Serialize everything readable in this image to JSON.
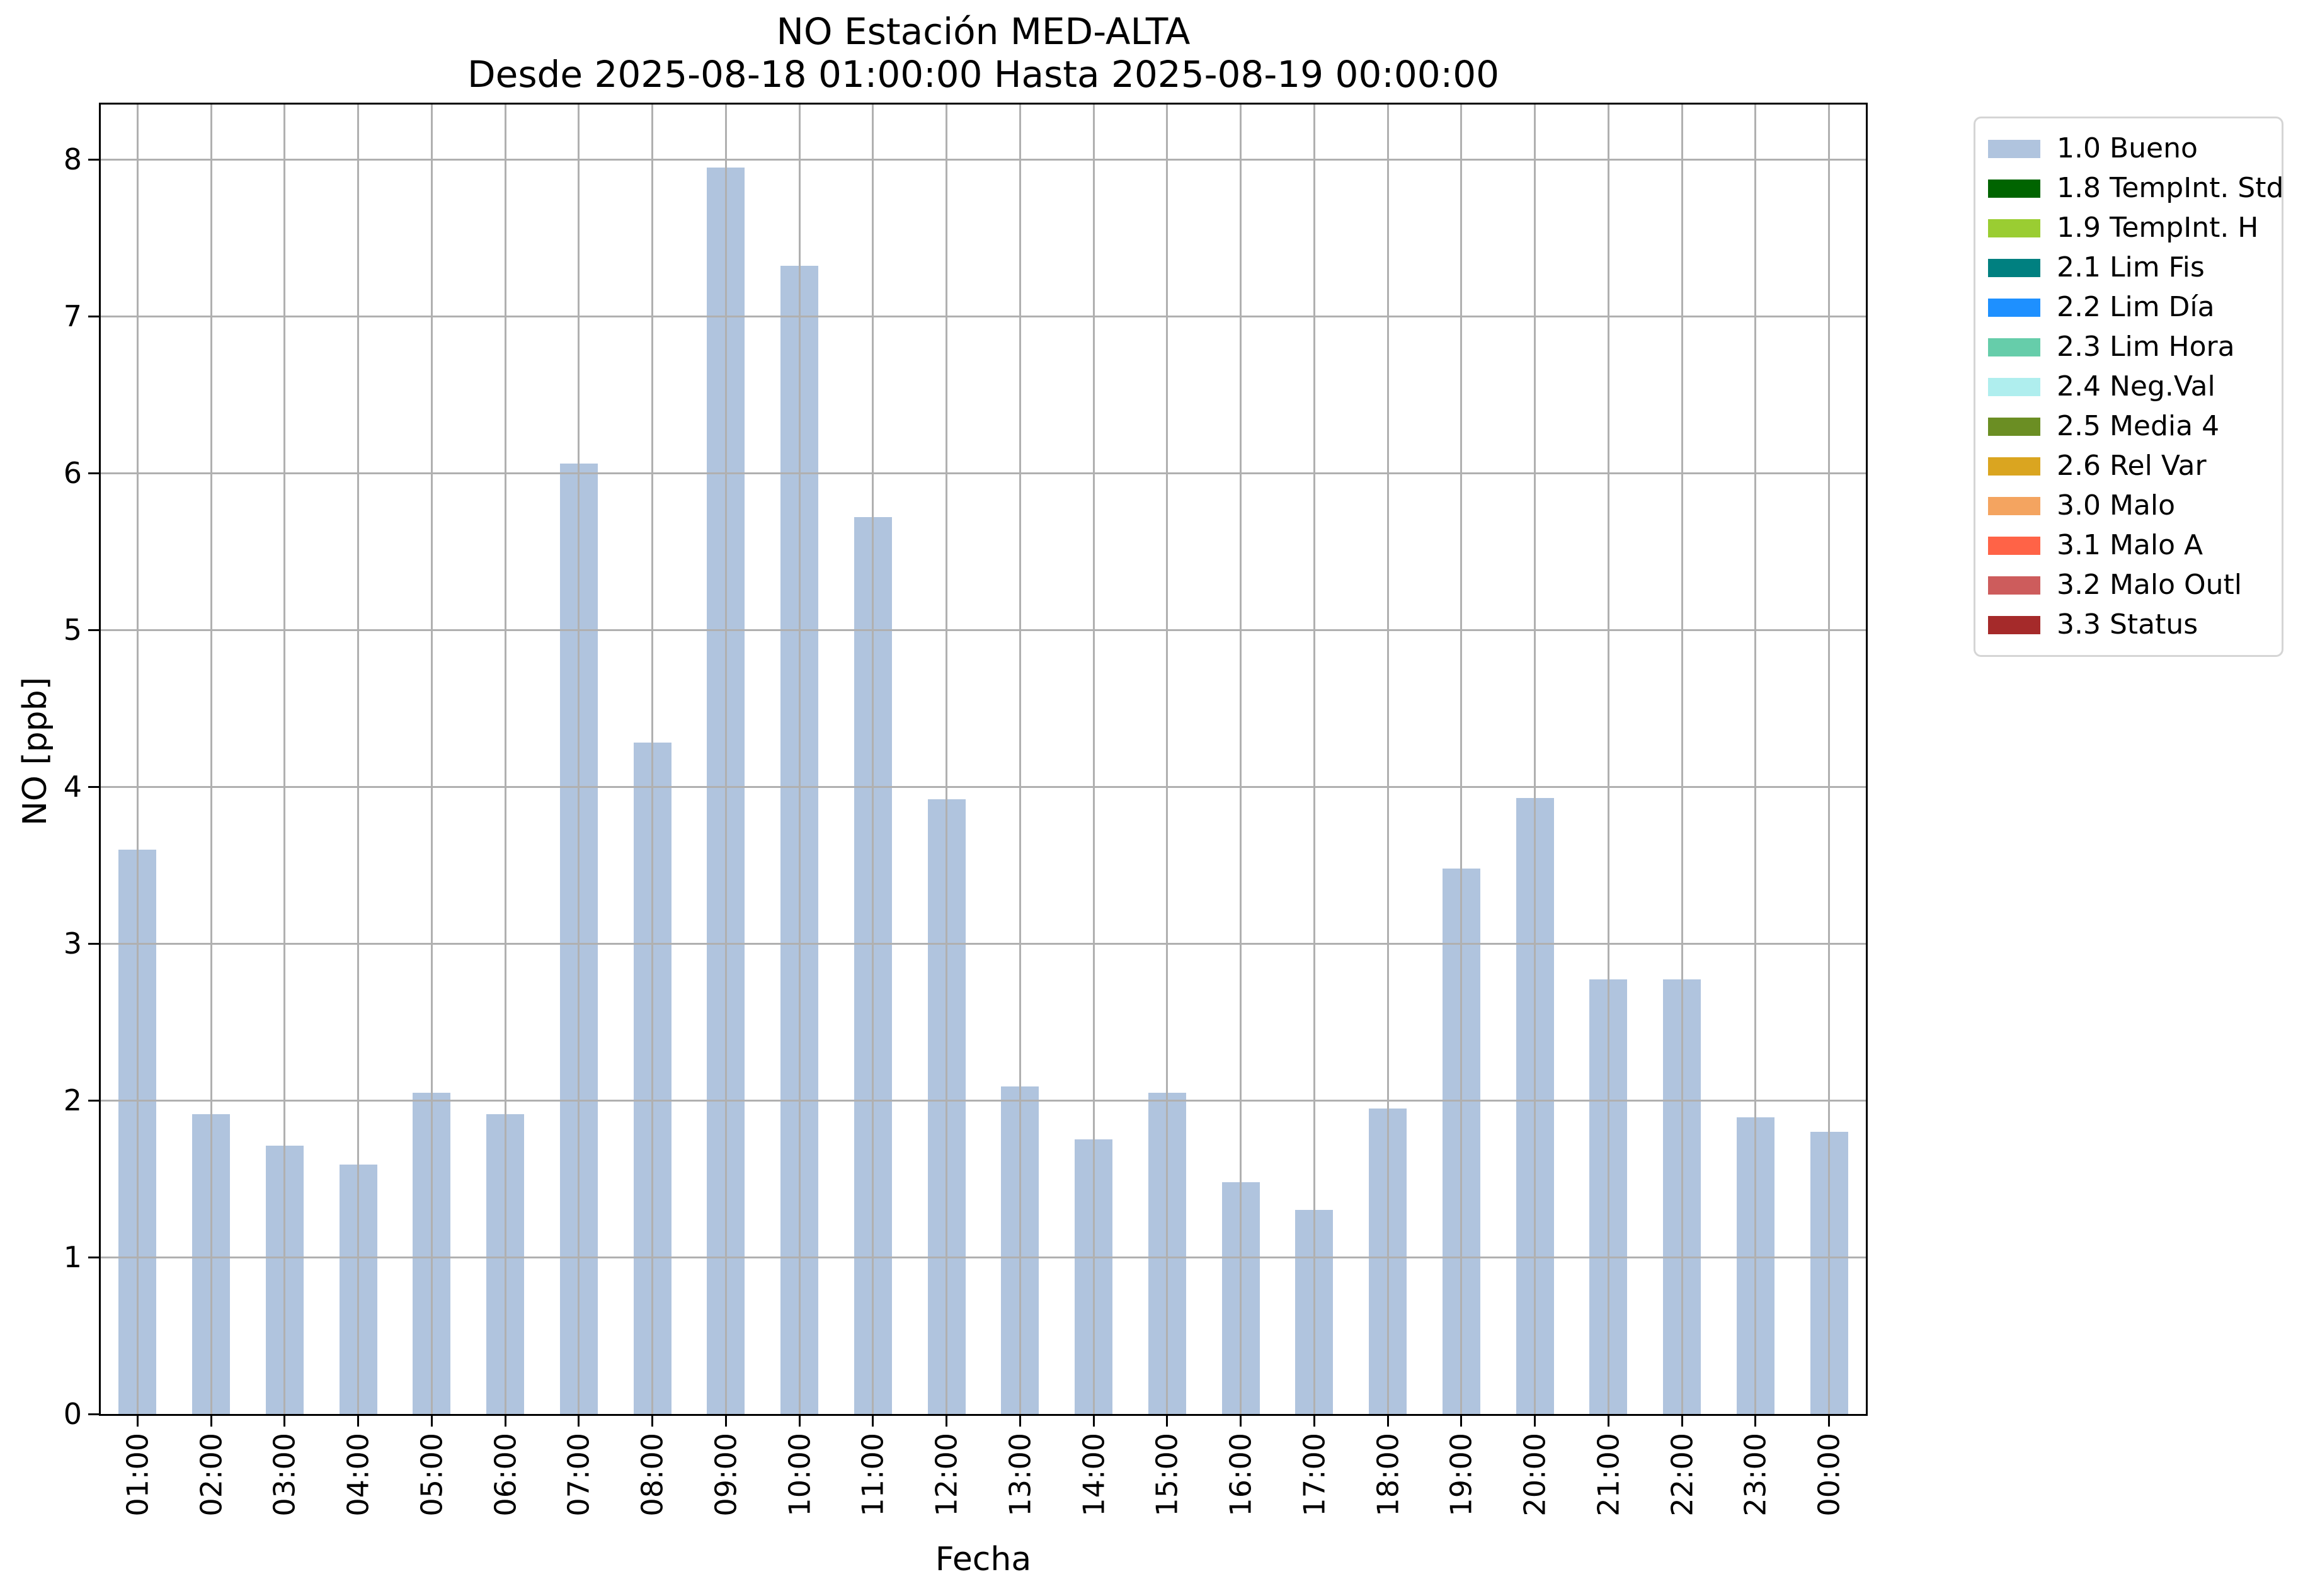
{
  "title": {
    "line1": "NO Estación MED-ALTA",
    "line2": "Desde 2025-08-18 01:00:00 Hasta 2025-08-19 00:00:00"
  },
  "chart_data": {
    "type": "bar",
    "title": "NO Estación MED-ALTA\nDesde 2025-08-18 01:00:00 Hasta 2025-08-19 00:00:00",
    "xlabel": "Fecha",
    "ylabel": "NO [ppb]",
    "categories": [
      "01:00",
      "02:00",
      "03:00",
      "04:00",
      "05:00",
      "06:00",
      "07:00",
      "08:00",
      "09:00",
      "10:00",
      "11:00",
      "12:00",
      "13:00",
      "14:00",
      "15:00",
      "16:00",
      "17:00",
      "18:00",
      "19:00",
      "20:00",
      "21:00",
      "22:00",
      "23:00",
      "00:00"
    ],
    "values": [
      3.6,
      1.91,
      1.71,
      1.59,
      2.05,
      1.91,
      6.06,
      4.28,
      7.95,
      7.32,
      5.72,
      3.92,
      2.09,
      1.75,
      2.05,
      1.48,
      1.3,
      1.95,
      3.48,
      3.93,
      2.77,
      2.77,
      1.89,
      1.8
    ],
    "series_label": "1.0 Bueno",
    "ylim": [
      0,
      8.35
    ],
    "yticks": [
      0,
      1,
      2,
      3,
      4,
      5,
      6,
      7,
      8
    ],
    "grid": true,
    "grid_on_top_of_bars": true,
    "legend_position": "outside upper right"
  },
  "colors": {
    "bar": "#b0c4de",
    "grid": "#b0b0b0",
    "axis": "#000000",
    "legend_border": "#d5d5d5",
    "background": "#ffffff"
  },
  "legend": {
    "items": [
      {
        "label": "1.0 Bueno",
        "color": "#b0c4de"
      },
      {
        "label": "1.8 TempInt. Std",
        "color": "#006400"
      },
      {
        "label": "1.9 TempInt. H",
        "color": "#9acd32"
      },
      {
        "label": "2.1 Lim Fis",
        "color": "#008080"
      },
      {
        "label": "2.2 Lim Día",
        "color": "#1e90ff"
      },
      {
        "label": "2.3 Lim Hora",
        "color": "#66cdaa"
      },
      {
        "label": "2.4 Neg.Val",
        "color": "#afeeee"
      },
      {
        "label": "2.5 Media 4",
        "color": "#6b8e23"
      },
      {
        "label": "2.6 Rel Var",
        "color": "#daa520"
      },
      {
        "label": "3.0 Malo",
        "color": "#f4a460"
      },
      {
        "label": "3.1 Malo A",
        "color": "#ff6347"
      },
      {
        "label": "3.2 Malo Outl",
        "color": "#cd5c5c"
      },
      {
        "label": "3.3 Status",
        "color": "#a52a2a"
      }
    ]
  }
}
